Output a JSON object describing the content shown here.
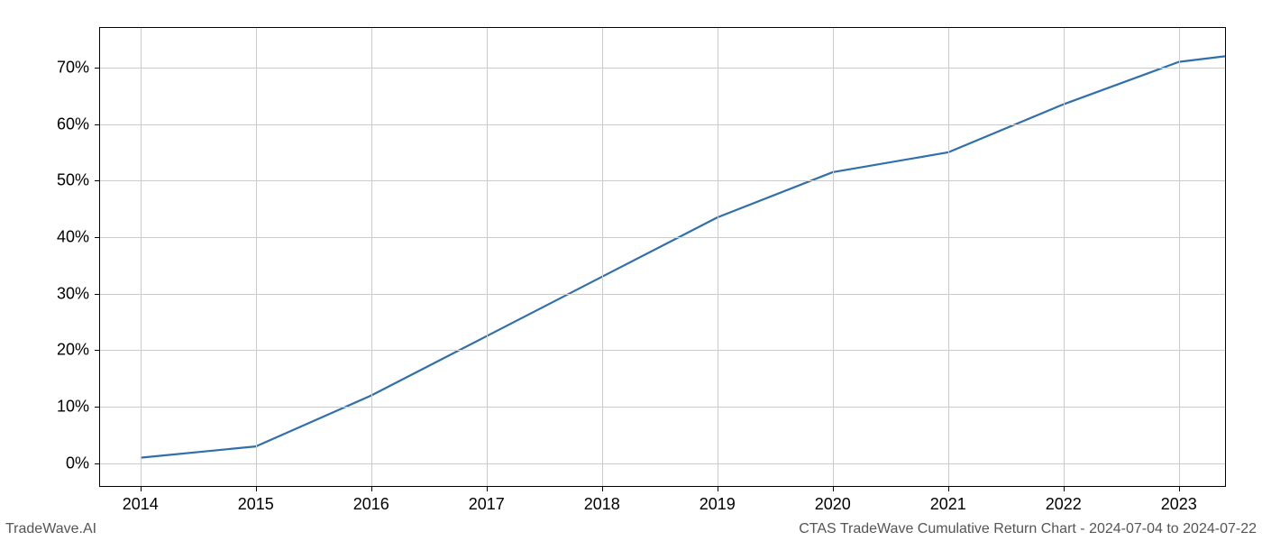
{
  "chart": {
    "type": "line",
    "background_color": "#ffffff",
    "plot_border_color": "#000000",
    "grid_color": "#cccccc",
    "line_color": "#2f6fae",
    "line_width": 2.2,
    "tick_font_size": 18,
    "tick_color": "#000000",
    "x": {
      "data_min": 2013.65,
      "data_max": 2023.4,
      "ticks": [
        2014,
        2015,
        2016,
        2017,
        2018,
        2019,
        2020,
        2021,
        2022,
        2023
      ],
      "tick_labels": [
        "2014",
        "2015",
        "2016",
        "2017",
        "2018",
        "2019",
        "2020",
        "2021",
        "2022",
        "2023"
      ]
    },
    "y": {
      "data_min": -4,
      "data_max": 77,
      "ticks": [
        0,
        10,
        20,
        30,
        40,
        50,
        60,
        70
      ],
      "tick_labels": [
        "0%",
        "10%",
        "20%",
        "30%",
        "40%",
        "50%",
        "60%",
        "70%"
      ]
    },
    "series": [
      {
        "x": 2014,
        "y": 1
      },
      {
        "x": 2015,
        "y": 3
      },
      {
        "x": 2016,
        "y": 12
      },
      {
        "x": 2017,
        "y": 22.5
      },
      {
        "x": 2018,
        "y": 33
      },
      {
        "x": 2019,
        "y": 43.5
      },
      {
        "x": 2020,
        "y": 51.5
      },
      {
        "x": 2021,
        "y": 55
      },
      {
        "x": 2022,
        "y": 63.5
      },
      {
        "x": 2023,
        "y": 71
      },
      {
        "x": 2023.4,
        "y": 72
      }
    ]
  },
  "footer": {
    "left": "TradeWave.AI",
    "right": "CTAS TradeWave Cumulative Return Chart - 2024-07-04 to 2024-07-22",
    "font_size": 16,
    "color": "#555555"
  }
}
